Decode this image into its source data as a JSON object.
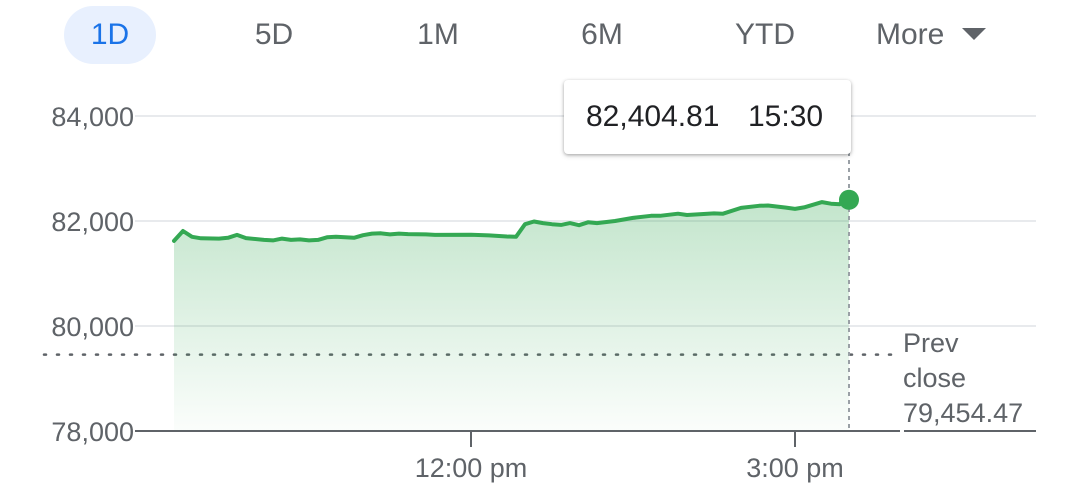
{
  "tabs": [
    {
      "label": "1D",
      "active": true
    },
    {
      "label": "5D",
      "active": false
    },
    {
      "label": "1M",
      "active": false
    },
    {
      "label": "6M",
      "active": false
    },
    {
      "label": "YTD",
      "active": false
    }
  ],
  "more_label": "More",
  "tooltip": {
    "value": "82,404.81",
    "time": "15:30"
  },
  "prev_close": {
    "line1": "Prev",
    "line2": "close",
    "value": "79,454.47"
  },
  "colors": {
    "accent": "#1a73e8",
    "line": "#34a853",
    "grid": "#e8eaed",
    "axis": "#5f6368"
  },
  "chart_data": {
    "type": "area",
    "title": "",
    "xlabel": "",
    "ylabel": "",
    "ylim": [
      78000,
      84000
    ],
    "y_ticks": [
      {
        "value": 84000,
        "label": "84,000"
      },
      {
        "value": 82000,
        "label": "82,000"
      },
      {
        "value": 80000,
        "label": "80,000"
      },
      {
        "value": 78000,
        "label": "78,000"
      }
    ],
    "x_range": [
      "09:15",
      "15:30"
    ],
    "x_ticks": [
      {
        "time": "12:00",
        "label": "12:00 pm"
      },
      {
        "time": "15:00",
        "label": "3:00 pm"
      }
    ],
    "prev_close_value": 79454.47,
    "grid": true,
    "series": [
      {
        "points": [
          [
            "09:15",
            81620
          ],
          [
            "09:20",
            81810
          ],
          [
            "09:25",
            81700
          ],
          [
            "09:30",
            81670
          ],
          [
            "09:40",
            81665
          ],
          [
            "09:45",
            81680
          ],
          [
            "09:50",
            81735
          ],
          [
            "09:55",
            81675
          ],
          [
            "10:05",
            81640
          ],
          [
            "10:10",
            81630
          ],
          [
            "10:15",
            81665
          ],
          [
            "10:20",
            81640
          ],
          [
            "10:25",
            81650
          ],
          [
            "10:30",
            81630
          ],
          [
            "10:35",
            81640
          ],
          [
            "10:40",
            81690
          ],
          [
            "10:45",
            81700
          ],
          [
            "10:55",
            81680
          ],
          [
            "11:00",
            81730
          ],
          [
            "11:05",
            81760
          ],
          [
            "11:10",
            81765
          ],
          [
            "11:15",
            81745
          ],
          [
            "11:20",
            81760
          ],
          [
            "11:25",
            81750
          ],
          [
            "11:35",
            81745
          ],
          [
            "11:40",
            81735
          ],
          [
            "12:00",
            81740
          ],
          [
            "12:10",
            81725
          ],
          [
            "12:20",
            81705
          ],
          [
            "12:25",
            81700
          ],
          [
            "12:30",
            81940
          ],
          [
            "12:35",
            81990
          ],
          [
            "12:40",
            81960
          ],
          [
            "12:45",
            81940
          ],
          [
            "12:50",
            81925
          ],
          [
            "12:55",
            81960
          ],
          [
            "13:00",
            81920
          ],
          [
            "13:05",
            81975
          ],
          [
            "13:10",
            81960
          ],
          [
            "13:20",
            82000
          ],
          [
            "13:30",
            82060
          ],
          [
            "13:40",
            82100
          ],
          [
            "13:45",
            82100
          ],
          [
            "13:55",
            82140
          ],
          [
            "14:00",
            82115
          ],
          [
            "14:15",
            82145
          ],
          [
            "14:20",
            82140
          ],
          [
            "14:30",
            82250
          ],
          [
            "14:40",
            82290
          ],
          [
            "14:45",
            82295
          ],
          [
            "14:55",
            82255
          ],
          [
            "15:00",
            82230
          ],
          [
            "15:05",
            82260
          ],
          [
            "15:15",
            82360
          ],
          [
            "15:20",
            82330
          ],
          [
            "15:25",
            82320
          ],
          [
            "15:27",
            82450
          ],
          [
            "15:30",
            82404.81
          ]
        ]
      }
    ]
  }
}
